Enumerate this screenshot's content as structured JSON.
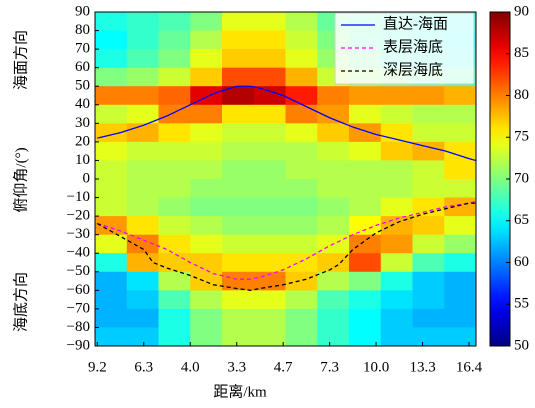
{
  "chart_data": {
    "type": "heatmap",
    "ylabel": "俯仰角/(°)",
    "ylabel_top": "海面方向",
    "ylabel_bottom": "海底方向",
    "xlabel": "距离/km",
    "xlim": [
      -0.05,
      8.15
    ],
    "xticks": [
      {
        "value": 0,
        "label": "9.2"
      },
      {
        "value": 1,
        "label": "6.3"
      },
      {
        "value": 2,
        "label": "4.0"
      },
      {
        "value": 3,
        "label": "3.3"
      },
      {
        "value": 4,
        "label": "4.7"
      },
      {
        "value": 5,
        "label": "7.3"
      },
      {
        "value": 6,
        "label": "10.0"
      },
      {
        "value": 7,
        "label": "13.3"
      },
      {
        "value": 8,
        "label": "16.4"
      }
    ],
    "ylim": [
      -90,
      90
    ],
    "yticks": [
      {
        "value": -90,
        "label": "−90"
      },
      {
        "value": -80,
        "label": "−80"
      },
      {
        "value": -70,
        "label": "−70"
      },
      {
        "value": -60,
        "label": "−60"
      },
      {
        "value": -50,
        "label": "−50"
      },
      {
        "value": -40,
        "label": "−40"
      },
      {
        "value": -30,
        "label": "−30"
      },
      {
        "value": -20,
        "label": "−20"
      },
      {
        "value": -10,
        "label": "−10"
      },
      0,
      10,
      20,
      30,
      40,
      50,
      60,
      70,
      80,
      90
    ],
    "zlim": [
      50,
      90
    ],
    "zticks": [
      50,
      55,
      60,
      65,
      70,
      75,
      80,
      85,
      90
    ],
    "colormap": "jet",
    "z": [
      [
        66,
        67,
        68,
        70,
        74,
        74,
        72,
        69,
        68,
        67,
        66,
        66
      ],
      [
        65,
        67,
        69,
        72,
        76,
        76,
        73,
        70,
        68,
        67,
        66,
        65
      ],
      [
        66,
        68,
        70,
        74,
        77,
        77,
        74,
        71,
        69,
        67,
        66,
        66
      ],
      [
        70,
        71,
        73,
        77,
        82,
        82,
        78,
        73,
        71,
        70,
        69,
        68
      ],
      [
        80,
        80,
        81,
        86,
        88,
        87,
        84,
        80,
        79,
        79,
        79,
        78
      ],
      [
        73,
        74,
        80,
        80,
        76,
        76,
        80,
        79,
        74,
        73,
        72,
        72
      ],
      [
        77,
        78,
        76,
        74,
        73,
        73,
        74,
        77,
        79,
        76,
        73,
        73
      ],
      [
        74,
        73,
        73,
        73,
        72,
        72,
        72,
        73,
        74,
        77,
        78,
        76
      ],
      [
        73,
        72,
        72,
        72,
        71,
        71,
        72,
        72,
        72,
        72,
        73,
        76
      ],
      [
        73,
        72,
        72,
        71,
        71,
        71,
        71,
        72,
        72,
        72,
        73,
        73
      ],
      [
        73,
        72,
        71,
        70,
        70,
        70,
        70,
        71,
        72,
        74,
        76,
        78
      ],
      [
        79,
        76,
        73,
        72,
        71,
        71,
        71,
        72,
        75,
        78,
        77,
        74
      ],
      [
        74,
        80,
        76,
        74,
        73,
        73,
        73,
        74,
        80,
        79,
        73,
        71
      ],
      [
        66,
        78,
        77,
        77,
        76,
        76,
        76,
        77,
        82,
        73,
        68,
        66
      ],
      [
        62,
        64,
        72,
        77,
        80,
        80,
        77,
        72,
        70,
        66,
        63,
        62
      ],
      [
        62,
        63,
        68,
        72,
        74,
        74,
        72,
        68,
        66,
        64,
        63,
        62
      ],
      [
        62,
        62,
        66,
        70,
        72,
        72,
        70,
        67,
        65,
        63,
        62,
        62
      ],
      [
        63,
        63,
        66,
        70,
        72,
        72,
        70,
        67,
        65,
        63,
        63,
        63
      ]
    ],
    "legend": "upper right",
    "series": [
      {
        "name": "直达-海面",
        "color": "#0000ff",
        "dash": false,
        "x": [
          0,
          0.5,
          1,
          1.5,
          2,
          2.5,
          3,
          3.3,
          3.5,
          4,
          4.5,
          5,
          5.5,
          6,
          6.5,
          7,
          7.5,
          8,
          8.15
        ],
        "values": [
          22,
          25,
          29,
          34,
          40,
          46,
          50,
          50,
          49,
          45,
          39,
          33,
          28,
          24,
          21,
          18,
          15,
          11,
          10
        ]
      },
      {
        "name": "表层海底",
        "color": "#ff00ff",
        "dash": true,
        "x": [
          0,
          0.5,
          1,
          1.5,
          2,
          2.5,
          3,
          3.3,
          3.5,
          4,
          4.5,
          5,
          5.5,
          6,
          6.5,
          7,
          7.5,
          8,
          8.15
        ],
        "values": [
          -24,
          -28,
          -33,
          -38,
          -45,
          -51,
          -54,
          -54,
          -53,
          -49,
          -43,
          -36,
          -30,
          -25,
          -21,
          -18,
          -15,
          -13,
          -12
        ]
      },
      {
        "name": "深层海底",
        "color": "#000000",
        "dash": true,
        "x": [
          0,
          0.5,
          1,
          1.2,
          1.5,
          2,
          2.5,
          3,
          3.3,
          3.5,
          4,
          4.5,
          5,
          5.2,
          5.5,
          6,
          6.5,
          7,
          7.5,
          8,
          8.15
        ],
        "values": [
          -24,
          -31,
          -38,
          -45,
          -48,
          -52,
          -57,
          -59,
          -60,
          -59,
          -57,
          -54,
          -49,
          -46,
          -38,
          -29,
          -23,
          -19,
          -16,
          -13,
          -13
        ]
      }
    ]
  }
}
